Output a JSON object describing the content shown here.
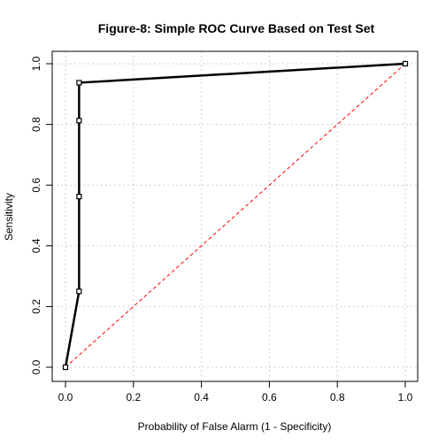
{
  "chart_data": {
    "type": "line",
    "title": "Figure-8: Simple ROC Curve Based on Test Set",
    "xlabel": "Probability of False Alarm (1 - Specificity)",
    "ylabel": "Sensitivity",
    "xlim": [
      0,
      1
    ],
    "ylim": [
      0,
      1
    ],
    "x_ticks": [
      "0.0",
      "0.2",
      "0.4",
      "0.6",
      "0.8",
      "1.0"
    ],
    "y_ticks": [
      "0.0",
      "0.2",
      "0.4",
      "0.6",
      "0.8",
      "1.0"
    ],
    "grid": true,
    "series": [
      {
        "x": [
          0.0,
          0.04,
          0.04,
          0.04,
          0.04,
          1.0
        ],
        "y": [
          0.0,
          0.25,
          0.5625,
          0.8125,
          0.9375,
          1.0
        ],
        "color": "#000000",
        "style": "solid-with-square-markers"
      }
    ],
    "reference_line": {
      "x": [
        0,
        1
      ],
      "y": [
        0,
        1
      ],
      "color": "#ff0000",
      "style": "dashed"
    }
  }
}
